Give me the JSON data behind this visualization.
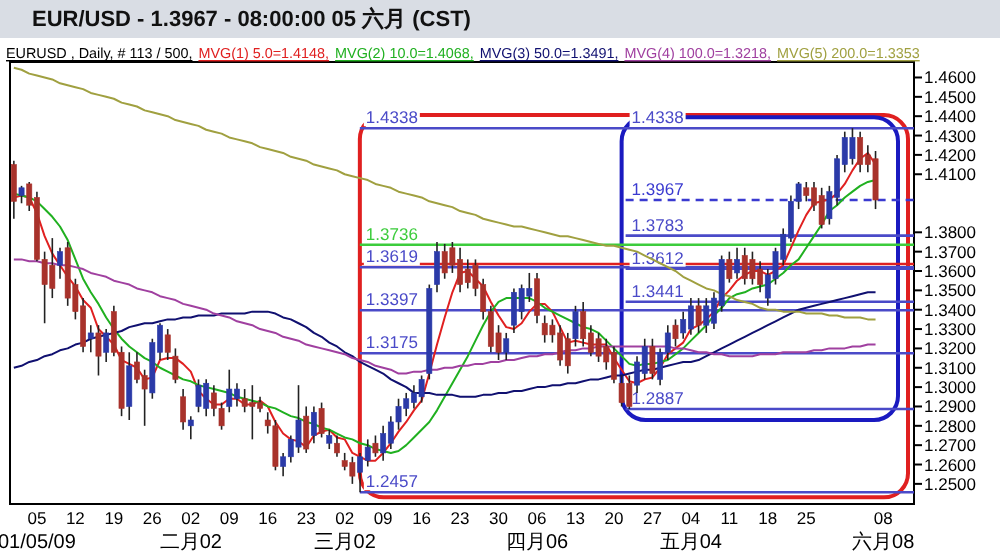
{
  "chart_data": {
    "type": "candlestick",
    "title": "EUR/USD - 1.3967 - 08:00:00 05 六月 (CST)",
    "subtitle": "EURUSD , Daily, # 113 / 500,",
    "legend": "top",
    "categories": [
      null,
      null,
      null,
      "05\n01/05/09",
      null,
      null,
      null,
      null,
      "12",
      null,
      null,
      null,
      null,
      "19",
      null,
      null,
      null,
      null,
      "26",
      null,
      null,
      null,
      null,
      "02\n二月02",
      null,
      null,
      null,
      null,
      "09",
      null,
      null,
      null,
      null,
      "16",
      null,
      null,
      null,
      null,
      "23",
      null,
      null,
      null,
      null,
      "02\n三月02",
      null,
      null,
      null,
      null,
      "09",
      null,
      null,
      null,
      null,
      "16",
      null,
      null,
      null,
      null,
      "23",
      null,
      null,
      null,
      null,
      "30",
      null,
      null,
      null,
      null,
      "06\n四月06",
      null,
      null,
      null,
      null,
      "13",
      null,
      null,
      null,
      null,
      "20",
      null,
      null,
      null,
      null,
      "27",
      null,
      null,
      null,
      null,
      "04\n五月04",
      null,
      null,
      null,
      null,
      "11",
      null,
      null,
      null,
      null,
      "18",
      null,
      null,
      null,
      null,
      "25",
      null,
      null,
      null,
      null,
      null,
      null,
      null,
      null,
      null,
      "08\n六月08"
    ],
    "ohlc": [
      [
        1.415,
        1.417,
        1.387,
        1.396
      ],
      [
        1.399,
        1.404,
        1.395,
        1.403
      ],
      [
        1.405,
        1.406,
        1.391,
        1.394
      ],
      [
        1.398,
        1.401,
        1.365,
        1.366
      ],
      [
        1.366,
        1.37,
        1.333,
        1.353
      ],
      [
        1.363,
        1.377,
        1.346,
        1.351
      ],
      [
        1.363,
        1.372,
        1.356,
        1.37
      ],
      [
        1.372,
        1.375,
        1.342,
        1.346
      ],
      [
        1.353,
        1.356,
        1.335,
        1.339
      ],
      [
        1.342,
        1.346,
        1.318,
        1.321
      ],
      [
        1.325,
        1.332,
        1.318,
        1.328
      ],
      [
        1.328,
        1.332,
        1.306,
        1.316
      ],
      [
        1.318,
        1.33,
        1.313,
        1.328
      ],
      [
        1.339,
        1.342,
        1.316,
        1.318
      ],
      [
        1.318,
        1.321,
        1.285,
        1.289
      ],
      [
        1.29,
        1.318,
        1.283,
        1.311
      ],
      [
        1.313,
        1.318,
        1.302,
        1.304
      ],
      [
        1.306,
        1.309,
        1.28,
        1.299
      ],
      [
        1.297,
        1.325,
        1.294,
        1.323
      ],
      [
        1.318,
        1.333,
        1.314,
        1.332
      ],
      [
        1.327,
        1.33,
        1.314,
        1.318
      ],
      [
        1.316,
        1.32,
        1.302,
        1.304
      ],
      [
        1.295,
        1.299,
        1.278,
        1.282
      ],
      [
        1.28,
        1.285,
        1.273,
        1.283
      ],
      [
        1.29,
        1.304,
        1.287,
        1.301
      ],
      [
        1.289,
        1.304,
        1.285,
        1.302
      ],
      [
        1.297,
        1.301,
        1.285,
        1.289
      ],
      [
        1.289,
        1.292,
        1.278,
        1.28
      ],
      [
        1.29,
        1.309,
        1.287,
        1.299
      ],
      [
        1.294,
        1.302,
        1.29,
        1.299
      ],
      [
        1.294,
        1.299,
        1.287,
        1.29
      ],
      [
        1.292,
        1.301,
        1.273,
        1.29
      ],
      [
        1.292,
        1.295,
        1.287,
        1.289
      ],
      [
        1.283,
        1.287,
        1.276,
        1.28
      ],
      [
        1.28,
        1.283,
        1.257,
        1.259
      ],
      [
        1.259,
        1.266,
        1.254,
        1.264
      ],
      [
        1.264,
        1.275,
        1.261,
        1.273
      ],
      [
        1.269,
        1.301,
        1.266,
        1.283
      ],
      [
        1.285,
        1.29,
        1.266,
        1.268
      ],
      [
        1.275,
        1.29,
        1.271,
        1.287
      ],
      [
        1.289,
        1.292,
        1.274,
        1.276
      ],
      [
        1.271,
        1.278,
        1.268,
        1.275
      ],
      [
        1.271,
        1.275,
        1.264,
        1.266
      ],
      [
        1.262,
        1.266,
        1.257,
        1.259
      ],
      [
        1.261,
        1.264,
        1.25,
        1.254
      ],
      [
        1.256,
        1.266,
        1.2457,
        1.264
      ],
      [
        1.262,
        1.273,
        1.259,
        1.269
      ],
      [
        1.271,
        1.275,
        1.264,
        1.266
      ],
      [
        1.266,
        1.28,
        1.262,
        1.276
      ],
      [
        1.271,
        1.285,
        1.268,
        1.282
      ],
      [
        1.282,
        1.294,
        1.278,
        1.29
      ],
      [
        1.289,
        1.297,
        1.285,
        1.294
      ],
      [
        1.292,
        1.301,
        1.289,
        1.297
      ],
      [
        1.295,
        1.306,
        1.292,
        1.304
      ],
      [
        1.307,
        1.353,
        1.304,
        1.351
      ],
      [
        1.353,
        1.375,
        1.349,
        1.37
      ],
      [
        1.37,
        1.374,
        1.356,
        1.359
      ],
      [
        1.372,
        1.375,
        1.359,
        1.363
      ],
      [
        1.366,
        1.372,
        1.349,
        1.353
      ],
      [
        1.361,
        1.366,
        1.351,
        1.354
      ],
      [
        1.363,
        1.366,
        1.347,
        1.351
      ],
      [
        1.353,
        1.356,
        1.335,
        1.339
      ],
      [
        1.339,
        1.342,
        1.318,
        1.321
      ],
      [
        1.328,
        1.332,
        1.314,
        1.318
      ],
      [
        1.318,
        1.328,
        1.314,
        1.325
      ],
      [
        1.332,
        1.351,
        1.328,
        1.349
      ],
      [
        1.339,
        1.353,
        1.335,
        1.351
      ],
      [
        1.347,
        1.359,
        1.344,
        1.351
      ],
      [
        1.356,
        1.359,
        1.333,
        1.337
      ],
      [
        1.333,
        1.337,
        1.323,
        1.327
      ],
      [
        1.332,
        1.335,
        1.323,
        1.327
      ],
      [
        1.328,
        1.332,
        1.311,
        1.314
      ],
      [
        1.325,
        1.328,
        1.307,
        1.311
      ],
      [
        1.325,
        1.342,
        1.321,
        1.339
      ],
      [
        1.339,
        1.344,
        1.321,
        1.325
      ],
      [
        1.328,
        1.332,
        1.316,
        1.318
      ],
      [
        1.325,
        1.328,
        1.313,
        1.316
      ],
      [
        1.321,
        1.325,
        1.309,
        1.313
      ],
      [
        1.318,
        1.321,
        1.302,
        1.304
      ],
      [
        1.302,
        1.306,
        1.29,
        1.292
      ],
      [
        1.302,
        1.306,
        1.2887,
        1.29
      ],
      [
        1.301,
        1.316,
        1.297,
        1.313
      ],
      [
        1.307,
        1.325,
        1.304,
        1.321
      ],
      [
        1.321,
        1.325,
        1.304,
        1.307
      ],
      [
        1.304,
        1.32,
        1.301,
        1.318
      ],
      [
        1.318,
        1.332,
        1.314,
        1.328
      ],
      [
        1.332,
        1.335,
        1.321,
        1.325
      ],
      [
        1.328,
        1.339,
        1.325,
        1.335
      ],
      [
        1.33,
        1.346,
        1.327,
        1.342
      ],
      [
        1.342,
        1.346,
        1.328,
        1.332
      ],
      [
        1.332,
        1.346,
        1.328,
        1.342
      ],
      [
        1.333,
        1.349,
        1.33,
        1.346
      ],
      [
        1.342,
        1.368,
        1.339,
        1.366
      ],
      [
        1.366,
        1.37,
        1.354,
        1.356
      ],
      [
        1.359,
        1.372,
        1.356,
        1.366
      ],
      [
        1.368,
        1.372,
        1.353,
        1.356
      ],
      [
        1.366,
        1.37,
        1.353,
        1.356
      ],
      [
        1.361,
        1.365,
        1.349,
        1.353
      ],
      [
        1.346,
        1.361,
        1.342,
        1.358
      ],
      [
        1.356,
        1.372,
        1.353,
        1.37
      ],
      [
        1.366,
        1.382,
        1.363,
        1.379
      ],
      [
        1.377,
        1.399,
        1.375,
        1.396
      ],
      [
        1.396,
        1.406,
        1.392,
        1.405
      ],
      [
        1.403,
        1.406,
        1.396,
        1.399
      ],
      [
        1.403,
        1.406,
        1.391,
        1.394
      ],
      [
        1.399,
        1.403,
        1.382,
        1.384
      ],
      [
        1.387,
        1.404,
        1.384,
        1.401
      ],
      [
        1.398,
        1.42,
        1.394,
        1.418
      ],
      [
        1.415,
        1.432,
        1.411,
        1.429
      ],
      [
        1.418,
        1.4338,
        1.415,
        1.429
      ],
      [
        1.429,
        1.432,
        1.411,
        1.415
      ],
      [
        1.42,
        1.425,
        1.411,
        1.415
      ],
      [
        1.418,
        1.422,
        1.392,
        1.3967
      ],
      null
    ],
    "colors": [
      "#a8322b",
      "#2b3aa8",
      "#a8322b",
      "#a8322b",
      "#a8322b",
      "#a8322b",
      "#2b3aa8",
      "#a8322b",
      "#a8322b",
      "#a8322b",
      "#2b3aa8",
      "#a8322b",
      "#2b3aa8",
      "#a8322b",
      "#a8322b",
      "#2b3aa8",
      "#a8322b",
      "#a8322b",
      "#2b3aa8",
      "#2b3aa8",
      "#a8322b",
      "#a8322b",
      "#a8322b",
      "#2b3aa8",
      "#2b3aa8",
      "#2b3aa8",
      "#a8322b",
      "#a8322b",
      "#2b3aa8",
      "#2b3aa8",
      "#a8322b",
      "#a8322b",
      "#a8322b",
      "#a8322b",
      "#a8322b",
      "#2b3aa8",
      "#2b3aa8",
      "#2b3aa8",
      "#a8322b",
      "#2b3aa8",
      "#a8322b",
      "#2b3aa8",
      "#a8322b",
      "#a8322b",
      "#a8322b",
      "#2b3aa8",
      "#2b3aa8",
      "#a8322b",
      "#2b3aa8",
      "#2b3aa8",
      "#2b3aa8",
      "#2b3aa8",
      "#2b3aa8",
      "#2b3aa8",
      "#2b3aa8",
      "#2b3aa8",
      "#a8322b",
      "#a8322b",
      "#a8322b",
      "#a8322b",
      "#a8322b",
      "#a8322b",
      "#a8322b",
      "#a8322b",
      "#2b3aa8",
      "#2b3aa8",
      "#2b3aa8",
      "#2b3aa8",
      "#a8322b",
      "#a8322b",
      "#a8322b",
      "#a8322b",
      "#a8322b",
      "#2b3aa8",
      "#a8322b",
      "#a8322b",
      "#a8322b",
      "#a8322b",
      "#a8322b",
      "#a8322b",
      "#a8322b",
      "#2b3aa8",
      "#2b3aa8",
      "#a8322b",
      "#2b3aa8",
      "#2b3aa8",
      "#a8322b",
      "#2b3aa8",
      "#2b3aa8",
      "#a8322b",
      "#2b3aa8",
      "#2b3aa8",
      "#2b3aa8",
      "#a8322b",
      "#2b3aa8",
      "#a8322b",
      "#a8322b",
      "#a8322b",
      "#2b3aa8",
      "#2b3aa8",
      "#2b3aa8",
      "#2b3aa8",
      "#2b3aa8",
      "#a8322b",
      "#a8322b",
      "#a8322b",
      "#2b3aa8",
      "#2b3aa8",
      "#2b3aa8",
      "#2b3aa8",
      "#a8322b",
      "#a8322b",
      "#a8322b",
      null
    ],
    "series": [
      {
        "type": "line",
        "name": "MVG(1) 5.0=1.4148,",
        "color": "#e02020",
        "values": [
          1.398,
          1.399,
          1.398,
          1.39,
          1.378,
          1.369,
          1.363,
          1.357,
          1.352,
          1.345,
          1.341,
          1.33,
          1.326,
          1.322,
          1.314,
          1.312,
          1.31,
          1.304,
          1.305,
          1.314,
          1.315,
          1.315,
          1.312,
          1.308,
          1.298,
          1.294,
          1.291,
          1.291,
          1.294,
          1.294,
          1.291,
          1.291,
          1.293,
          1.29,
          1.282,
          1.276,
          1.273,
          1.272,
          1.269,
          1.275,
          1.277,
          1.278,
          1.274,
          1.273,
          1.266,
          1.264,
          1.262,
          1.262,
          1.266,
          1.271,
          1.277,
          1.282,
          1.288,
          1.293,
          1.307,
          1.322,
          1.336,
          1.349,
          1.359,
          1.36,
          1.356,
          1.352,
          1.344,
          1.337,
          1.331,
          1.33,
          1.333,
          1.339,
          1.343,
          1.343,
          1.339,
          1.331,
          1.323,
          1.324,
          1.323,
          1.322,
          1.322,
          1.322,
          1.315,
          1.309,
          1.303,
          1.302,
          1.304,
          1.305,
          1.31,
          1.317,
          1.32,
          1.323,
          1.33,
          1.332,
          1.335,
          1.339,
          1.346,
          1.35,
          1.355,
          1.358,
          1.36,
          1.36,
          1.358,
          1.36,
          1.363,
          1.372,
          1.381,
          1.389,
          1.395,
          1.396,
          1.397,
          1.4,
          1.405,
          1.412,
          1.418,
          1.421,
          1.415,
          null
        ]
      },
      {
        "type": "line",
        "name": "MVG(2) 10.0=1.4068,",
        "color": "#20b020",
        "values": [
          1.4,
          1.399,
          1.398,
          1.396,
          1.392,
          1.388,
          1.383,
          1.376,
          1.366,
          1.356,
          1.349,
          1.343,
          1.336,
          1.33,
          1.325,
          1.321,
          1.318,
          1.315,
          1.313,
          1.31,
          1.308,
          1.306,
          1.304,
          1.303,
          1.301,
          1.3,
          1.299,
          1.298,
          1.297,
          1.295,
          1.294,
          1.293,
          1.292,
          1.29,
          1.289,
          1.287,
          1.285,
          1.284,
          1.282,
          1.281,
          1.279,
          1.278,
          1.276,
          1.274,
          1.273,
          1.271,
          1.27,
          1.268,
          1.267,
          1.266,
          1.267,
          1.27,
          1.274,
          1.278,
          1.282,
          1.288,
          1.295,
          1.302,
          1.309,
          1.316,
          1.324,
          1.332,
          1.339,
          1.344,
          1.346,
          1.346,
          1.346,
          1.346,
          1.344,
          1.341,
          1.339,
          1.337,
          1.335,
          1.333,
          1.331,
          1.33,
          1.328,
          1.324,
          1.32,
          1.316,
          1.312,
          1.311,
          1.312,
          1.312,
          1.313,
          1.314,
          1.317,
          1.32,
          1.324,
          1.328,
          1.332,
          1.337,
          1.341,
          1.346,
          1.348,
          1.349,
          1.351,
          1.352,
          1.353,
          1.356,
          1.359,
          1.363,
          1.366,
          1.372,
          1.378,
          1.384,
          1.391,
          1.394,
          1.398,
          1.401,
          1.404,
          1.406,
          1.407,
          null
        ]
      },
      {
        "type": "line",
        "name": "MVG(3) 50.0=1.3491,",
        "color": "#101070",
        "values": [
          1.31,
          1.311,
          1.313,
          1.314,
          1.316,
          1.317,
          1.319,
          1.32,
          1.322,
          1.323,
          1.325,
          1.326,
          1.327,
          1.328,
          1.329,
          1.331,
          1.332,
          1.333,
          1.333,
          1.334,
          1.335,
          1.335,
          1.336,
          1.336,
          1.337,
          1.337,
          1.337,
          1.338,
          1.338,
          1.338,
          1.338,
          1.339,
          1.339,
          1.339,
          1.338,
          1.336,
          1.335,
          1.333,
          1.331,
          1.328,
          1.326,
          1.323,
          1.321,
          1.318,
          1.316,
          1.313,
          1.311,
          1.309,
          1.307,
          1.304,
          1.302,
          1.3,
          1.297,
          1.297,
          1.297,
          1.296,
          1.296,
          1.296,
          1.295,
          1.295,
          1.295,
          1.296,
          1.296,
          1.297,
          1.297,
          1.298,
          1.298,
          1.299,
          1.3,
          1.3,
          1.301,
          1.301,
          1.302,
          1.302,
          1.303,
          1.304,
          1.304,
          1.305,
          1.306,
          1.306,
          1.307,
          1.308,
          1.309,
          1.309,
          1.31,
          1.311,
          1.312,
          1.313,
          1.313,
          1.314,
          1.316,
          1.318,
          1.32,
          1.322,
          1.324,
          1.326,
          1.328,
          1.33,
          1.332,
          1.334,
          1.336,
          1.338,
          1.34,
          1.341,
          1.342,
          1.343,
          1.344,
          1.345,
          1.346,
          1.347,
          1.348,
          1.349,
          1.349,
          null
        ]
      },
      {
        "type": "line",
        "name": "MVG(4) 100.0=1.3218,",
        "color": "#a040a0",
        "values": [
          1.366,
          1.366,
          1.365,
          1.365,
          1.364,
          1.364,
          1.363,
          1.363,
          1.362,
          1.361,
          1.359,
          1.358,
          1.357,
          1.355,
          1.354,
          1.353,
          1.351,
          1.35,
          1.349,
          1.347,
          1.346,
          1.345,
          1.343,
          1.342,
          1.341,
          1.34,
          1.338,
          1.337,
          1.336,
          1.334,
          1.333,
          1.332,
          1.33,
          1.329,
          1.328,
          1.326,
          1.325,
          1.324,
          1.322,
          1.321,
          1.32,
          1.319,
          1.318,
          1.317,
          1.315,
          1.314,
          1.313,
          1.311,
          1.31,
          1.309,
          1.307,
          1.307,
          1.308,
          1.308,
          1.309,
          1.309,
          1.31,
          1.31,
          1.311,
          1.311,
          1.312,
          1.312,
          1.313,
          1.313,
          1.314,
          1.314,
          1.315,
          1.316,
          1.316,
          1.317,
          1.317,
          1.318,
          1.319,
          1.319,
          1.32,
          1.32,
          1.321,
          1.321,
          1.321,
          1.321,
          1.321,
          1.321,
          1.321,
          1.321,
          1.321,
          1.321,
          1.32,
          1.32,
          1.319,
          1.318,
          1.318,
          1.317,
          1.317,
          1.316,
          1.316,
          1.316,
          1.316,
          1.317,
          1.317,
          1.317,
          1.318,
          1.318,
          1.318,
          1.318,
          1.319,
          1.319,
          1.32,
          1.32,
          1.32,
          1.321,
          1.321,
          1.322,
          1.322,
          null
        ]
      },
      {
        "type": "line",
        "name": "MVG(5) 200.0=1.3353",
        "color": "#a0a040",
        "values": [
          1.465,
          1.464,
          1.462,
          1.461,
          1.46,
          1.459,
          1.457,
          1.456,
          1.455,
          1.454,
          1.452,
          1.451,
          1.45,
          1.449,
          1.447,
          1.446,
          1.445,
          1.443,
          1.442,
          1.441,
          1.44,
          1.438,
          1.437,
          1.436,
          1.435,
          1.433,
          1.432,
          1.431,
          1.429,
          1.428,
          1.427,
          1.426,
          1.424,
          1.423,
          1.422,
          1.421,
          1.419,
          1.418,
          1.417,
          1.415,
          1.414,
          1.413,
          1.412,
          1.41,
          1.409,
          1.408,
          1.407,
          1.405,
          1.404,
          1.403,
          1.401,
          1.4,
          1.399,
          1.398,
          1.396,
          1.395,
          1.394,
          1.393,
          1.391,
          1.39,
          1.389,
          1.387,
          1.386,
          1.385,
          1.384,
          1.383,
          1.383,
          1.382,
          1.381,
          1.38,
          1.379,
          1.378,
          1.378,
          1.377,
          1.376,
          1.375,
          1.374,
          1.373,
          1.373,
          1.372,
          1.371,
          1.37,
          1.368,
          1.366,
          1.364,
          1.362,
          1.36,
          1.357,
          1.355,
          1.353,
          1.351,
          1.35,
          1.348,
          1.347,
          1.345,
          1.344,
          1.343,
          1.341,
          1.34,
          1.34,
          1.339,
          1.339,
          1.339,
          1.338,
          1.338,
          1.338,
          1.337,
          1.337,
          1.336,
          1.336,
          1.336,
          1.335,
          1.335,
          null
        ]
      }
    ],
    "ylim": [
      1.2396,
      1.468
    ],
    "yticks": [
      {
        "value": 1.25,
        "label": "1.2500"
      },
      {
        "value": 1.26,
        "label": "1.2600"
      },
      {
        "value": 1.27,
        "label": "1.2700"
      },
      {
        "value": 1.28,
        "label": "1.2800"
      },
      {
        "value": 1.29,
        "label": "1.2900"
      },
      {
        "value": 1.3,
        "label": "1.3000"
      },
      {
        "value": 1.31,
        "label": "1.3100"
      },
      {
        "value": 1.32,
        "label": "1.3200"
      },
      {
        "value": 1.33,
        "label": "1.3300"
      },
      {
        "value": 1.34,
        "label": "1.3400"
      },
      {
        "value": 1.35,
        "label": "1.3500"
      },
      {
        "value": 1.36,
        "label": "1.3600"
      },
      {
        "value": 1.37,
        "label": "1.3700"
      },
      {
        "value": 1.38,
        "label": "1.3800"
      },
      {
        "value": 1.41,
        "label": "1.4100"
      },
      {
        "value": 1.42,
        "label": "1.4200"
      },
      {
        "value": 1.43,
        "label": "1.4300"
      },
      {
        "value": 1.44,
        "label": "1.4400"
      },
      {
        "value": 1.45,
        "label": "1.4500"
      },
      {
        "value": 1.46,
        "label": "1.4600"
      }
    ],
    "ref_lines": [
      {
        "axis": "y",
        "value": 1.4338,
        "label": "1.4338",
        "color": "#4a4ac8"
      },
      {
        "axis": "y",
        "value": 1.3619,
        "label": "1.3619",
        "color": "#4a4ac8"
      },
      {
        "axis": "y",
        "value": 1.3397,
        "label": "1.3397",
        "color": "#4a4ac8"
      },
      {
        "axis": "y",
        "value": 1.3175,
        "label": "1.3175",
        "color": "#4a4ac8"
      },
      {
        "axis": "y",
        "value": 1.2457,
        "label": "1.2457",
        "color": "#4a4ac8"
      },
      {
        "axis": "y",
        "value": 1.3736,
        "label": "1.3736",
        "color": "#3ccc3c"
      },
      {
        "axis": "y",
        "value": 1.3967,
        "label": "1.3967",
        "color": "#3a3ad0",
        "line_style": "dashed"
      },
      {
        "axis": "y",
        "value": 1.3636,
        "label": null,
        "color": "#e02020"
      },
      {
        "axis": "y",
        "value": 1.3783,
        "label": "1.3783",
        "color": "#4a4ac8"
      },
      {
        "axis": "y",
        "value": 1.3612,
        "label": "1.3612",
        "color": "#4a4ac8"
      },
      {
        "axis": "y",
        "value": 1.3441,
        "label": "1.3441",
        "color": "#4a4ac8"
      },
      {
        "axis": "y",
        "value": 1.2887,
        "label": "1.2887",
        "color": "#4a4ac8"
      }
    ],
    "annotations": [
      {
        "text": "1.4338",
        "y": 1.4338
      }
    ]
  }
}
